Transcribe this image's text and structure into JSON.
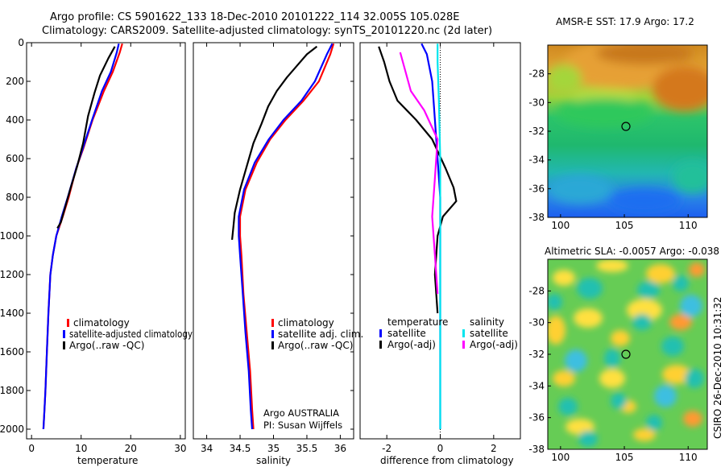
{
  "header": {
    "line1": "Argo profile: CS 5901622_133 18-Dec-2010 20101222_114 32.005S 105.028E",
    "line2": "Climatology: CARS2009. Satellite-adjusted climatology: synTS_20101220.nc (2d later)"
  },
  "side_stamp": "CSIRO 26-Dec-2010 10:31:32",
  "colors": {
    "clim": "#ff0000",
    "sat": "#0000ff",
    "argo": "#000000",
    "cyan": "#00e5ee",
    "magenta": "#ff00ff"
  },
  "chart_data": [
    {
      "type": "line",
      "name": "temperature-profile",
      "xlabel": "temperature",
      "ylabel": "",
      "xlim": [
        -1,
        31
      ],
      "ylim": [
        2050,
        0
      ],
      "y_ticks": [
        0,
        200,
        400,
        600,
        800,
        1000,
        1200,
        1400,
        1600,
        1800,
        2000
      ],
      "y_tick_labels": [
        "0",
        "200",
        "400",
        "600",
        "800",
        "1000",
        "1200",
        "1400",
        "1600",
        "1800",
        "2000"
      ],
      "x_ticks": [
        0,
        10,
        20,
        30
      ],
      "x_tick_labels": [
        "0",
        "10",
        "20",
        "30"
      ],
      "legend": [
        "climatology",
        "satellite-adjusted climatology",
        "Argo(..raw -QC)"
      ],
      "legend_position": "lower-right",
      "series": [
        {
          "name": "climatology",
          "color": "#ff0000",
          "x": [
            18.3,
            17.8,
            16.4,
            14.6,
            12.3,
            10.4,
            9.0,
            7.5,
            6.3,
            5.0,
            4.3,
            3.8,
            3.4,
            3.1,
            2.8,
            2.6,
            2.4
          ],
          "y": [
            5,
            50,
            150,
            250,
            400,
            550,
            650,
            800,
            900,
            1000,
            1100,
            1200,
            1400,
            1600,
            1800,
            1900,
            2000
          ]
        },
        {
          "name": "satellite-adjusted",
          "color": "#0000ff",
          "x": [
            17.6,
            17.2,
            16.0,
            14.2,
            12.2,
            10.3,
            9.0,
            7.3,
            6.1,
            5.0,
            4.3,
            3.8,
            3.4,
            3.1,
            2.8,
            2.6,
            2.4
          ],
          "y": [
            5,
            50,
            150,
            250,
            400,
            550,
            650,
            800,
            900,
            1000,
            1100,
            1200,
            1400,
            1600,
            1800,
            1900,
            2000
          ]
        },
        {
          "name": "argo",
          "color": "#000000",
          "x": [
            16.8,
            15.5,
            13.8,
            12.7,
            11.4,
            10.4,
            9.2,
            7.9,
            6.8,
            5.9,
            5.2
          ],
          "y": [
            20,
            80,
            170,
            260,
            380,
            520,
            640,
            750,
            850,
            930,
            960
          ]
        }
      ]
    },
    {
      "type": "line",
      "name": "salinity-profile",
      "xlabel": "salinity",
      "xlim": [
        33.8,
        36.2
      ],
      "ylim": [
        2050,
        0
      ],
      "x_ticks": [
        34,
        34.5,
        35,
        35.5,
        36
      ],
      "x_tick_labels": [
        "34",
        "34.5",
        "35",
        "35.5",
        "36"
      ],
      "legend": [
        "climatology",
        "satellite adj. clim.",
        "Argo(..raw -QC)"
      ],
      "legend_position": "lower-right",
      "annotation": [
        "Argo AUSTRALIA",
        "PI: Susan Wijffels"
      ],
      "series": [
        {
          "name": "climatology",
          "color": "#ff0000",
          "x": [
            35.9,
            35.85,
            35.68,
            35.45,
            35.18,
            34.95,
            34.75,
            34.58,
            34.5,
            34.5,
            34.52,
            34.55,
            34.6,
            34.65,
            34.68,
            34.7
          ],
          "y": [
            5,
            60,
            200,
            300,
            400,
            500,
            620,
            760,
            900,
            1000,
            1100,
            1300,
            1500,
            1700,
            1900,
            2000
          ]
        },
        {
          "name": "satellite-adjusted",
          "color": "#0000ff",
          "x": [
            35.88,
            35.8,
            35.62,
            35.42,
            35.15,
            34.93,
            34.72,
            34.56,
            34.48,
            34.48,
            34.5,
            34.54,
            34.58,
            34.63,
            34.66,
            34.68
          ],
          "y": [
            5,
            60,
            200,
            300,
            400,
            500,
            620,
            760,
            900,
            1000,
            1100,
            1300,
            1500,
            1700,
            1900,
            2000
          ]
        },
        {
          "name": "argo",
          "color": "#000000",
          "x": [
            35.65,
            35.5,
            35.35,
            35.2,
            35.05,
            34.92,
            34.82,
            34.7,
            34.6,
            34.5,
            34.42,
            34.4,
            34.38
          ],
          "y": [
            20,
            60,
            120,
            180,
            250,
            330,
            420,
            520,
            640,
            760,
            880,
            950,
            1020
          ]
        }
      ]
    },
    {
      "type": "line",
      "name": "difference-profile",
      "xlabel": "difference from climatology",
      "xlim": [
        -3,
        3
      ],
      "ylim": [
        2050,
        0
      ],
      "x_ticks": [
        -2,
        0,
        2
      ],
      "x_tick_labels": [
        "-2",
        "0",
        "2"
      ],
      "legend_temperature_title": "temperature",
      "legend_salinity_title": "salinity",
      "legend": [
        "satellite",
        "Argo(-adj)",
        "satellite",
        "Argo(-adj)"
      ],
      "legend_position": "lower-center",
      "series": [
        {
          "name": "temperature satellite",
          "color": "#0000ff",
          "x": [
            -0.7,
            -0.5,
            -0.3,
            -0.2,
            -0.1,
            0.0,
            0.0,
            0.0,
            0.0,
            0.0
          ],
          "y": [
            5,
            60,
            200,
            400,
            600,
            800,
            1000,
            1400,
            1800,
            2000
          ]
        },
        {
          "name": "temperature argo",
          "color": "#000000",
          "x": [
            -2.3,
            -2.1,
            -1.9,
            -1.6,
            -0.9,
            -0.3,
            0.2,
            0.5,
            0.6,
            0.1,
            -0.1,
            -0.2,
            -0.1
          ],
          "y": [
            20,
            100,
            200,
            300,
            400,
            500,
            650,
            750,
            820,
            900,
            1000,
            1200,
            1400
          ]
        },
        {
          "name": "salinity satellite",
          "color": "#00e5ee",
          "x": [
            -0.1,
            -0.1,
            -0.05,
            0.0,
            0.0,
            0.0,
            0.0,
            0.0
          ],
          "y": [
            5,
            100,
            300,
            600,
            900,
            1300,
            1700,
            2000
          ]
        },
        {
          "name": "salinity argo",
          "color": "#ff00ff",
          "x": [
            -1.5,
            -1.3,
            -1.1,
            -0.6,
            -0.1,
            -0.2,
            -0.3,
            -0.2,
            -0.1
          ],
          "y": [
            50,
            150,
            250,
            350,
            500,
            700,
            900,
            1100,
            1300
          ]
        }
      ]
    },
    {
      "type": "heatmap",
      "name": "sst-map",
      "title": "AMSR-E SST: 17.9 Argo: 17.2",
      "xlim": [
        99,
        111.5
      ],
      "ylim": [
        -38,
        -26
      ],
      "x_ticks": [
        100,
        105,
        110
      ],
      "x_tick_labels": [
        "100",
        "105",
        "110"
      ],
      "y_ticks": [
        -28,
        -30,
        -32,
        -34,
        -36,
        -38
      ],
      "y_tick_labels": [
        "-28",
        "-30",
        "-32",
        "-34",
        "-36",
        "-38"
      ],
      "marker": {
        "lon": 105.028,
        "lat": -32.005
      }
    },
    {
      "type": "heatmap",
      "name": "sla-map",
      "title": "Altimetric SLA: -0.0057 Argo: -0.038",
      "xlim": [
        99,
        111.5
      ],
      "ylim": [
        -38,
        -26
      ],
      "x_ticks": [
        100,
        105,
        110
      ],
      "x_tick_labels": [
        "100",
        "105",
        "110"
      ],
      "y_ticks": [
        -28,
        -30,
        -32,
        -34,
        -36,
        -38
      ],
      "y_tick_labels": [
        "-28",
        "-30",
        "-32",
        "-34",
        "-36",
        "-38"
      ],
      "marker": {
        "lon": 105.028,
        "lat": -32.005
      }
    }
  ]
}
